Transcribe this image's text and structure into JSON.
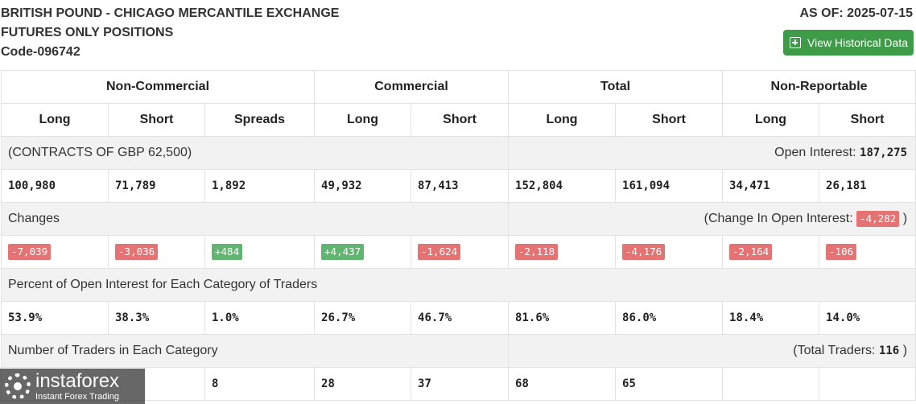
{
  "header": {
    "title_line1": "BRITISH POUND - CHICAGO MERCANTILE EXCHANGE",
    "title_line2": "FUTURES ONLY POSITIONS",
    "code": "Code-096742",
    "as_of": "AS OF: 2025-07-15",
    "button_label": "View Historical Data"
  },
  "groups": [
    "Non-Commercial",
    "Commercial",
    "Total",
    "Non-Reportable"
  ],
  "columns": [
    "Long",
    "Short",
    "Spreads",
    "Long",
    "Short",
    "Long",
    "Short",
    "Long",
    "Short"
  ],
  "contracts": {
    "label": "(CONTRACTS OF GBP 62,500)",
    "oi_label": "Open Interest:",
    "oi_value": "187,275",
    "values": [
      "100,980",
      "71,789",
      "1,892",
      "49,932",
      "87,413",
      "152,804",
      "161,094",
      "34,471",
      "26,181"
    ]
  },
  "changes": {
    "label": "Changes",
    "oi_label": "(Change In Open Interest:",
    "oi_value": "-4,282",
    "oi_close": ")",
    "values": [
      "-7,039",
      "-3,036",
      "+484",
      "+4,437",
      "-1,624",
      "-2,118",
      "-4,176",
      "-2,164",
      "-106"
    ]
  },
  "percent": {
    "label": "Percent of Open Interest for Each Category of Traders",
    "values": [
      "53.9%",
      "38.3%",
      "1.0%",
      "26.7%",
      "46.7%",
      "81.6%",
      "86.0%",
      "18.4%",
      "14.0%"
    ]
  },
  "traders": {
    "label": "Number of Traders in Each Category",
    "total_label": "(Total Traders:",
    "total_value": "116",
    "total_close": ")",
    "values": [
      "",
      "",
      "8",
      "28",
      "37",
      "68",
      "65",
      "",
      ""
    ]
  },
  "logo": {
    "brand": "instaforex",
    "tagline": "Instant Forex Trading"
  },
  "colors": {
    "negative": "#e57373",
    "positive": "#62b570",
    "button": "#3e9b48"
  }
}
